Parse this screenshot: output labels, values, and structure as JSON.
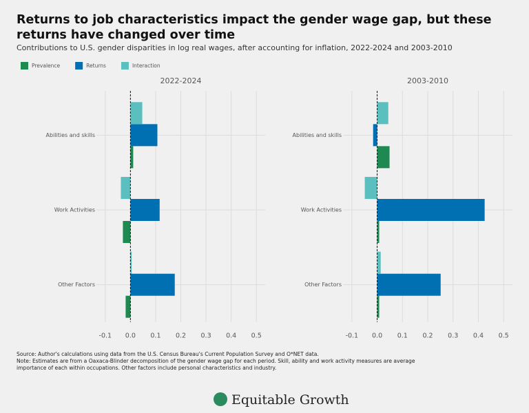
{
  "header": {
    "title": "Returns to job characteristics impact the gender wage gap, but these returns have changed over time",
    "subtitle": "Contributions to U.S. gender disparities in log real wages, after accounting for inflation, 2022-2024 and 2003-2010"
  },
  "chart_data": [
    {
      "type": "bar",
      "orientation": "horizontal",
      "title": "2022-2024",
      "categories": [
        "Abilities and skills",
        "Work Activities",
        "Other Factors"
      ],
      "series": [
        {
          "name": "Prevalence",
          "color": "#1e8a52",
          "values": [
            0.011,
            -0.03,
            -0.019
          ]
        },
        {
          "name": "Returns",
          "color": "#0070b3",
          "values": [
            0.107,
            0.116,
            0.176
          ]
        },
        {
          "name": "Interaction",
          "color": "#5cbfbf",
          "values": [
            0.047,
            -0.038,
            0.005
          ]
        }
      ],
      "xlim": [
        -0.135,
        0.535
      ],
      "xticks": [
        -0.1,
        {
          "value": 0,
          "label": "0.0"
        },
        0.1,
        0.2,
        0.3,
        0.4,
        0.5
      ],
      "grid": true
    },
    {
      "type": "bar",
      "orientation": "horizontal",
      "title": "2003-2010",
      "categories": [
        "Abilities and skills",
        "Work Activities",
        "Other Factors"
      ],
      "series": [
        {
          "name": "Prevalence",
          "color": "#1e8a52",
          "values": [
            0.049,
            0.008,
            0.008
          ]
        },
        {
          "name": "Returns",
          "color": "#0070b3",
          "values": [
            -0.016,
            0.425,
            0.251
          ]
        },
        {
          "name": "Interaction",
          "color": "#5cbfbf",
          "values": [
            0.044,
            -0.049,
            0.014
          ]
        }
      ],
      "xlim": [
        -0.135,
        0.535
      ],
      "xticks": [
        -0.1,
        {
          "value": 0,
          "label": "0.0"
        },
        0.1,
        0.2,
        0.3,
        0.4,
        0.5
      ],
      "grid": true
    }
  ],
  "footer": {
    "source": "Source:  Author's calculations using data from the U.S. Census Bureau's Current Population Survey and O*NET data.",
    "note": "Note: Estimates are from a Oaxaca-Blinder decomposition of the gender wage gap for each period. Skill, ability and work activity measures are average importance of each within occupations. Other factors include personal characteristics and industry.",
    "logo": "Equitable Growth"
  }
}
